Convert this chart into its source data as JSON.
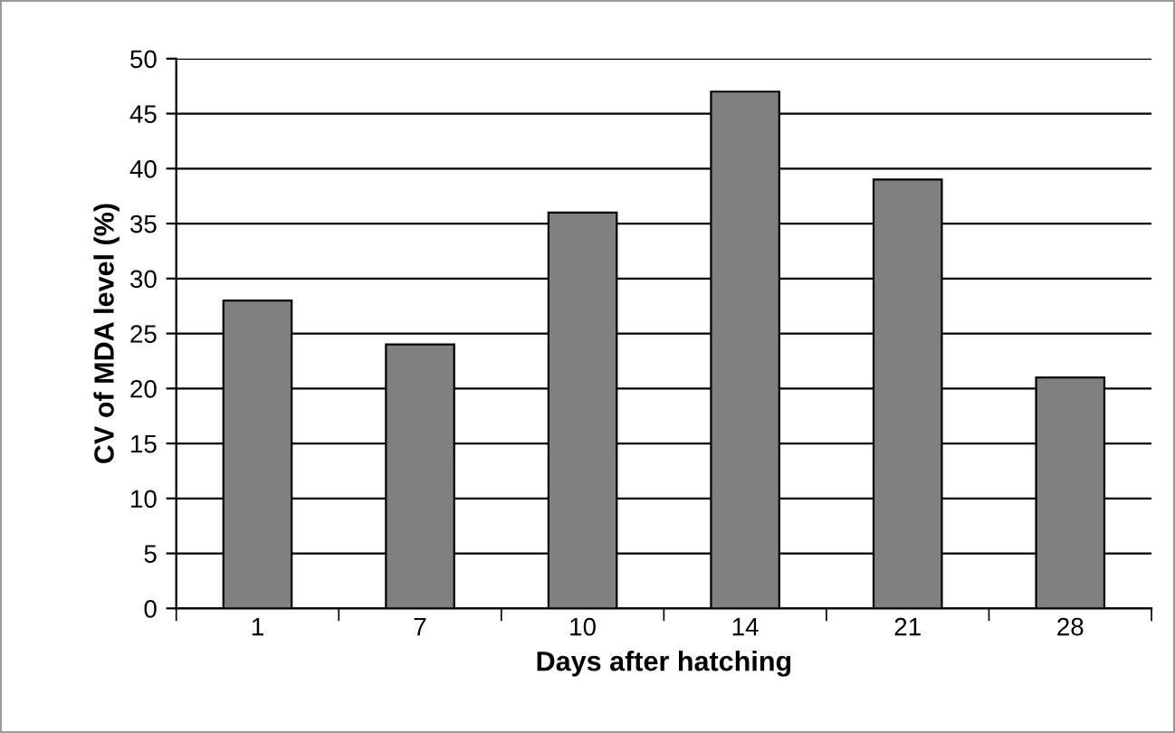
{
  "chart_data": {
    "type": "bar",
    "xlabel": "Days after hatching",
    "ylabel": "CV of MDA level (%)",
    "categories": [
      "1",
      "7",
      "10",
      "14",
      "21",
      "28"
    ],
    "values": [
      28,
      24,
      36,
      47,
      39,
      21
    ],
    "color": "#808080",
    "ylim": [
      0,
      50
    ],
    "yticks": [
      0,
      5,
      10,
      15,
      20,
      25,
      30,
      35,
      40,
      45,
      50
    ],
    "grid": "y",
    "legend": false
  }
}
